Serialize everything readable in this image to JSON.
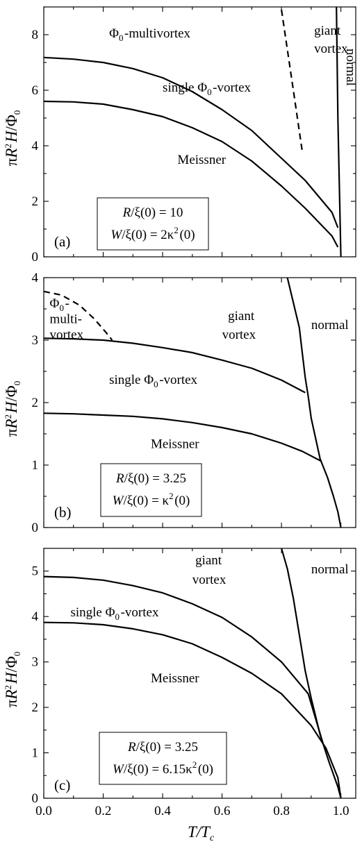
{
  "chart_data": [
    {
      "type": "line",
      "panel": "(a)",
      "xlim": [
        0,
        1.05
      ],
      "ylim": [
        0,
        9
      ],
      "xticks": [
        0.0,
        0.2,
        0.4,
        0.6,
        0.8,
        1.0
      ],
      "yticks": [
        0,
        2,
        4,
        6,
        8
      ],
      "xlabel": "T/T_c",
      "ylabel": "πR²H/Φ0",
      "legend_lines": [
        "R/ξ(0) = 10",
        "W/ξ(0) = 2κ²(0)"
      ],
      "regions": [
        {
          "text": "Φ0-multivortex",
          "x": 0.22,
          "y": 7.9
        },
        {
          "text": "single Φ0-vortex",
          "x": 0.4,
          "y": 5.95
        },
        {
          "text": "Meissner",
          "x": 0.45,
          "y": 3.35
        },
        {
          "text": "giant",
          "x": 0.91,
          "y": 8.0
        },
        {
          "text": "vortex",
          "x": 0.91,
          "y": 7.35
        },
        {
          "text": "normal",
          "x": 1.02,
          "y": 7.5,
          "rotate": 90
        }
      ],
      "series": [
        {
          "style": "solid",
          "x": [
            0.0,
            0.1,
            0.2,
            0.3,
            0.4,
            0.5,
            0.6,
            0.7,
            0.8,
            0.88,
            0.97,
            0.99
          ],
          "y": [
            5.6,
            5.58,
            5.5,
            5.3,
            5.05,
            4.65,
            4.15,
            3.45,
            2.55,
            1.75,
            0.75,
            0.35
          ]
        },
        {
          "style": "solid",
          "x": [
            0.0,
            0.1,
            0.2,
            0.3,
            0.4,
            0.5,
            0.6,
            0.7,
            0.8,
            0.88,
            0.97,
            0.99
          ],
          "y": [
            7.18,
            7.12,
            7.0,
            6.78,
            6.45,
            5.95,
            5.3,
            4.55,
            3.55,
            2.75,
            1.6,
            1.05
          ]
        },
        {
          "style": "solid",
          "x": [
            0.985,
            0.99,
            1.0
          ],
          "y": [
            9.0,
            5.0,
            0.0
          ]
        },
        {
          "style": "dashed",
          "x": [
            0.8,
            0.84,
            0.87
          ],
          "y": [
            8.9,
            6.0,
            3.8
          ]
        }
      ]
    },
    {
      "type": "line",
      "panel": "(b)",
      "xlim": [
        0,
        1.05
      ],
      "ylim": [
        0,
        4
      ],
      "xticks": [
        0.0,
        0.2,
        0.4,
        0.6,
        0.8,
        1.0
      ],
      "yticks": [
        0,
        1,
        2,
        3,
        4
      ],
      "xlabel": "T/T_c",
      "ylabel": "πR²H/Φ0",
      "legend_lines": [
        "R/ξ(0) = 3.25",
        "W/ξ(0) = κ²(0)"
      ],
      "regions": [
        {
          "text": "Φ0-",
          "x": 0.02,
          "y": 3.52
        },
        {
          "text": "multi-",
          "x": 0.02,
          "y": 3.27
        },
        {
          "text": "vortex",
          "x": 0.02,
          "y": 3.02
        },
        {
          "text": "giant",
          "x": 0.62,
          "y": 3.32
        },
        {
          "text": "vortex",
          "x": 0.6,
          "y": 3.02
        },
        {
          "text": "normal",
          "x": 0.9,
          "y": 3.18
        },
        {
          "text": "single Φ0-vortex",
          "x": 0.22,
          "y": 2.3
        },
        {
          "text": "Meissner",
          "x": 0.36,
          "y": 1.27
        }
      ],
      "series": [
        {
          "style": "solid",
          "x": [
            0.0,
            0.1,
            0.2,
            0.3,
            0.4,
            0.5,
            0.6,
            0.7,
            0.8,
            0.87,
            0.935
          ],
          "y": [
            1.83,
            1.82,
            1.8,
            1.78,
            1.74,
            1.68,
            1.6,
            1.5,
            1.35,
            1.22,
            1.06
          ]
        },
        {
          "style": "solid",
          "x": [
            0.0,
            0.1,
            0.2,
            0.3,
            0.4,
            0.5,
            0.6,
            0.7,
            0.8,
            0.88
          ],
          "y": [
            3.03,
            3.02,
            3.0,
            2.95,
            2.88,
            2.8,
            2.68,
            2.55,
            2.36,
            2.16
          ]
        },
        {
          "style": "solid",
          "x": [
            0.82,
            0.84,
            0.86,
            0.87,
            0.88,
            0.89,
            0.9,
            0.93,
            0.955,
            0.975,
            0.99,
            1.0
          ],
          "y": [
            4.0,
            3.6,
            3.2,
            2.8,
            2.4,
            2.1,
            1.75,
            1.1,
            0.8,
            0.5,
            0.25,
            0.0
          ]
        },
        {
          "style": "dashed",
          "x": [
            0.0,
            0.06,
            0.12,
            0.17,
            0.21,
            0.23
          ],
          "y": [
            3.78,
            3.72,
            3.56,
            3.34,
            3.12,
            3.0
          ]
        }
      ]
    },
    {
      "type": "line",
      "panel": "(c)",
      "xlim": [
        0,
        1.05
      ],
      "ylim": [
        0,
        5.5
      ],
      "xticks": [
        0.0,
        0.2,
        0.4,
        0.6,
        0.8,
        1.0
      ],
      "yticks": [
        0,
        1,
        2,
        3,
        4,
        5
      ],
      "xlabel": "T/T_c",
      "ylabel": "πR²H/Φ0",
      "legend_lines": [
        "R/ξ(0) = 3.25",
        "W/ξ(0) = 6.15κ²(0)"
      ],
      "regions": [
        {
          "text": "giant",
          "x": 0.51,
          "y": 5.15
        },
        {
          "text": "vortex",
          "x": 0.5,
          "y": 4.72
        },
        {
          "text": "normal",
          "x": 0.9,
          "y": 4.95
        },
        {
          "text": "single Φ0-vortex",
          "x": 0.09,
          "y": 4.0
        },
        {
          "text": "Meissner",
          "x": 0.36,
          "y": 2.55
        }
      ],
      "series": [
        {
          "style": "solid",
          "x": [
            0.0,
            0.1,
            0.2,
            0.3,
            0.4,
            0.5,
            0.6,
            0.7,
            0.8,
            0.9,
            0.95,
            0.99,
            1.0
          ],
          "y": [
            3.87,
            3.86,
            3.82,
            3.73,
            3.6,
            3.4,
            3.1,
            2.75,
            2.3,
            1.6,
            1.1,
            0.45,
            0.0
          ]
        },
        {
          "style": "solid",
          "x": [
            0.0,
            0.1,
            0.2,
            0.3,
            0.4,
            0.5,
            0.6,
            0.7,
            0.8,
            0.89,
            0.94
          ],
          "y": [
            4.88,
            4.86,
            4.8,
            4.68,
            4.52,
            4.28,
            3.98,
            3.55,
            3.0,
            2.3,
            1.2
          ]
        },
        {
          "style": "solid",
          "x": [
            0.8,
            0.82,
            0.84,
            0.86,
            0.88,
            0.9,
            0.93,
            0.96,
            0.99,
            1.0
          ],
          "y": [
            5.5,
            5.05,
            4.4,
            3.6,
            2.8,
            2.2,
            1.4,
            0.8,
            0.25,
            0.0
          ]
        }
      ]
    }
  ]
}
